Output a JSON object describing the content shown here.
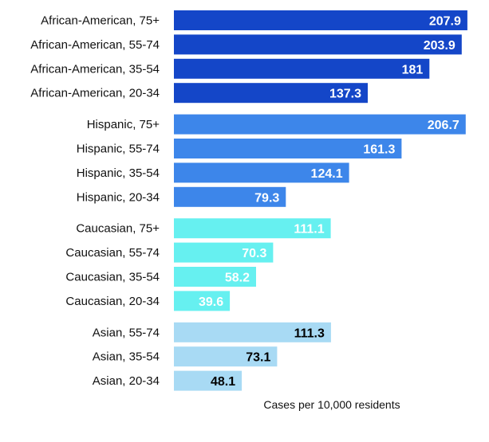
{
  "chart_data": {
    "type": "bar",
    "orientation": "horizontal",
    "xlabel": "Cases per 10,000 residents",
    "xlim": [
      0,
      210
    ],
    "grid": false,
    "legend": "none",
    "groups": [
      {
        "color": "#1446c8",
        "label_color": "#ffffff",
        "rows": [
          {
            "category": "African-American, 75+",
            "value": 207.9,
            "label": "207.9"
          },
          {
            "category": "African-American, 55-74",
            "value": 203.9,
            "label": "203.9"
          },
          {
            "category": "African-American, 35-54",
            "value": 181,
            "label": "181"
          },
          {
            "category": "African-American, 20-34",
            "value": 137.3,
            "label": "137.3"
          }
        ]
      },
      {
        "color": "#3d86ea",
        "label_color": "#ffffff",
        "rows": [
          {
            "category": "Hispanic, 75+",
            "value": 206.7,
            "label": "206.7"
          },
          {
            "category": "Hispanic, 55-74",
            "value": 161.3,
            "label": "161.3"
          },
          {
            "category": "Hispanic, 35-54",
            "value": 124.1,
            "label": "124.1"
          },
          {
            "category": "Hispanic, 20-34",
            "value": 79.3,
            "label": "79.3"
          }
        ]
      },
      {
        "color": "#66f0f0",
        "label_color": "#ffffff",
        "rows": [
          {
            "category": "Caucasian, 75+",
            "value": 111.1,
            "label": "111.1"
          },
          {
            "category": "Caucasian, 55-74",
            "value": 70.3,
            "label": "70.3"
          },
          {
            "category": "Caucasian, 35-54",
            "value": 58.2,
            "label": "58.2"
          },
          {
            "category": "Caucasian, 20-34",
            "value": 39.6,
            "label": "39.6"
          }
        ]
      },
      {
        "color": "#a8daf4",
        "label_color": "#000000",
        "rows": [
          {
            "category": "Asian, 55-74",
            "value": 111.3,
            "label": "111.3"
          },
          {
            "category": "Asian, 35-54",
            "value": 73.1,
            "label": "73.1"
          },
          {
            "category": "Asian, 20-34",
            "value": 48.1,
            "label": "48.1"
          }
        ]
      }
    ]
  }
}
